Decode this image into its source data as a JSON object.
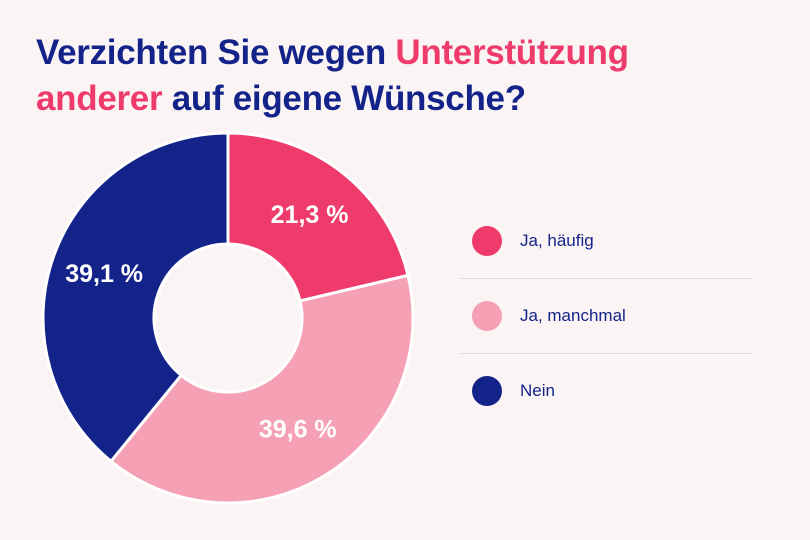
{
  "title": {
    "part1": "Verzichten Sie wegen ",
    "part2": "Unterstützung",
    "part3": "anderer",
    "part4": " auf eigene Wünsche?"
  },
  "colors": {
    "accent": "#ef3b6b",
    "navy": "#14238a",
    "background": "#fbf4f4"
  },
  "chart_data": {
    "type": "pie",
    "variant": "donut",
    "title": "Verzichten Sie wegen Unterstützung anderer auf eigene Wünsche?",
    "categories": [
      "Ja, häufig",
      "Ja, manchmal",
      "Nein"
    ],
    "values": [
      21.3,
      39.6,
      39.1
    ],
    "value_labels": [
      "21,3 %",
      "39,6 %",
      "39,1 %"
    ],
    "colors": [
      "#ef3b6b",
      "#f6a0b6",
      "#14238a"
    ],
    "legend": "right"
  }
}
